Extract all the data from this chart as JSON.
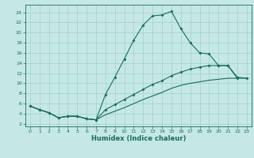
{
  "xlabel": "Humidex (Indice chaleur)",
  "ylabel": "",
  "xlim": [
    -0.5,
    23.5
  ],
  "ylim": [
    1.5,
    25.5
  ],
  "xticks": [
    0,
    1,
    2,
    3,
    4,
    5,
    6,
    7,
    8,
    9,
    10,
    11,
    12,
    13,
    14,
    15,
    16,
    17,
    18,
    19,
    20,
    21,
    22,
    23
  ],
  "yticks": [
    2,
    4,
    6,
    8,
    10,
    12,
    14,
    16,
    18,
    20,
    22,
    24
  ],
  "background_color": "#c5e8e6",
  "grid_color": "#9ecfcc",
  "line_color": "#1a6b5e",
  "line1_x": [
    0,
    1,
    2,
    3,
    4,
    5,
    6,
    7,
    8,
    9,
    10,
    11,
    12,
    13,
    14,
    15,
    16,
    17,
    18,
    19,
    20,
    21,
    22
  ],
  "line1_y": [
    5.5,
    4.8,
    4.2,
    3.2,
    3.5,
    3.5,
    3.0,
    2.8,
    7.8,
    11.2,
    14.8,
    18.5,
    21.5,
    23.3,
    23.5,
    24.2,
    20.8,
    18.0,
    16.0,
    15.8,
    13.5,
    13.5,
    11.0
  ],
  "line2_x": [
    0,
    1,
    2,
    3,
    4,
    5,
    6,
    7,
    8,
    9,
    10,
    11,
    12,
    13,
    14,
    15,
    16,
    17,
    18,
    19,
    20,
    21,
    22,
    23
  ],
  "line2_y": [
    5.5,
    4.8,
    4.2,
    3.2,
    3.5,
    3.5,
    3.0,
    2.8,
    4.8,
    5.8,
    6.8,
    7.8,
    8.8,
    9.8,
    10.5,
    11.5,
    12.2,
    12.8,
    13.2,
    13.5,
    13.5,
    13.5,
    11.2,
    11.0
  ],
  "line3_x": [
    0,
    1,
    2,
    3,
    4,
    5,
    6,
    7,
    8,
    9,
    10,
    11,
    12,
    13,
    14,
    15,
    16,
    17,
    18,
    19,
    20,
    21,
    22,
    23
  ],
  "line3_y": [
    5.5,
    4.8,
    4.2,
    3.2,
    3.5,
    3.5,
    3.0,
    2.8,
    3.8,
    4.5,
    5.2,
    6.0,
    6.8,
    7.5,
    8.2,
    9.0,
    9.6,
    10.0,
    10.3,
    10.6,
    10.8,
    11.0,
    11.0,
    11.0
  ]
}
